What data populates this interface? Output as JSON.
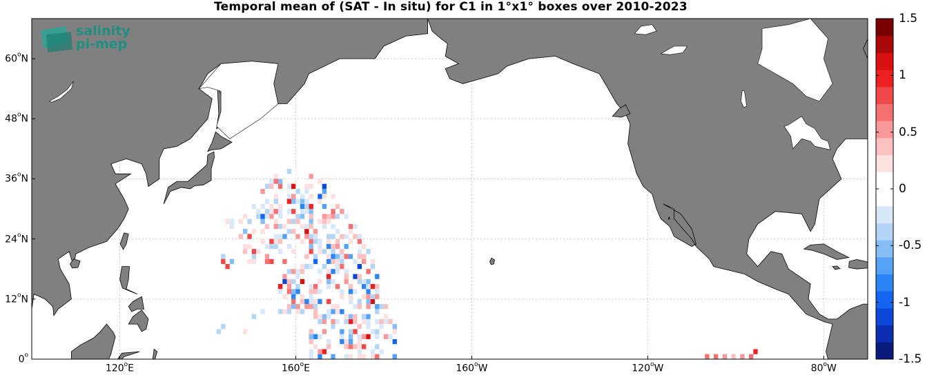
{
  "title": "Temporal mean of (SAT - In situ) for C1 in 1°x1° boxes over 2010-2023",
  "logo": {
    "line1": "salinity",
    "line2": "pi-mep"
  },
  "x_ticks": [
    {
      "lon": 120,
      "deg": "120",
      "hemi": "E"
    },
    {
      "lon": 160,
      "deg": "160",
      "hemi": "E"
    },
    {
      "lon": 200,
      "deg": "160",
      "hemi": "W"
    },
    {
      "lon": 240,
      "deg": "120",
      "hemi": "W"
    },
    {
      "lon": 280,
      "deg": "80",
      "hemi": "W"
    }
  ],
  "y_ticks": [
    {
      "lat": 60,
      "deg": "60",
      "hemi": "N"
    },
    {
      "lat": 48,
      "deg": "48",
      "hemi": "N"
    },
    {
      "lat": 36,
      "deg": "36",
      "hemi": "N"
    },
    {
      "lat": 24,
      "deg": "24",
      "hemi": "N"
    },
    {
      "lat": 12,
      "deg": "12",
      "hemi": "N"
    },
    {
      "lat": 0,
      "deg": "0",
      "hemi": ""
    }
  ],
  "colorbar": {
    "range": [
      -1.5,
      1.5
    ],
    "ticks": [
      "1.5",
      "1",
      "0.5",
      "0",
      "-0.5",
      "-1",
      "-1.5"
    ],
    "tick_values": [
      1.5,
      1,
      0.5,
      0,
      -0.5,
      -1,
      -1.5
    ],
    "colors": [
      "#0a1a7a",
      "#0b2fb0",
      "#0d47d8",
      "#1565f0",
      "#2b85f5",
      "#55a1f5",
      "#86bdf5",
      "#b4d5f5",
      "#d8e8f8",
      "#ffffff",
      "#ffffff",
      "#fde0e0",
      "#fbc0c0",
      "#f89898",
      "#f47070",
      "#f04848",
      "#ec2020",
      "#d81010",
      "#a80808",
      "#7a0000"
    ]
  },
  "colors": {
    "land": "#808080",
    "ocean": "#ffffff",
    "grid": "#c8c8c8"
  },
  "region": {
    "lon_min": 100,
    "lon_max": 290,
    "lat_min": 0,
    "lat_max": 68
  }
}
